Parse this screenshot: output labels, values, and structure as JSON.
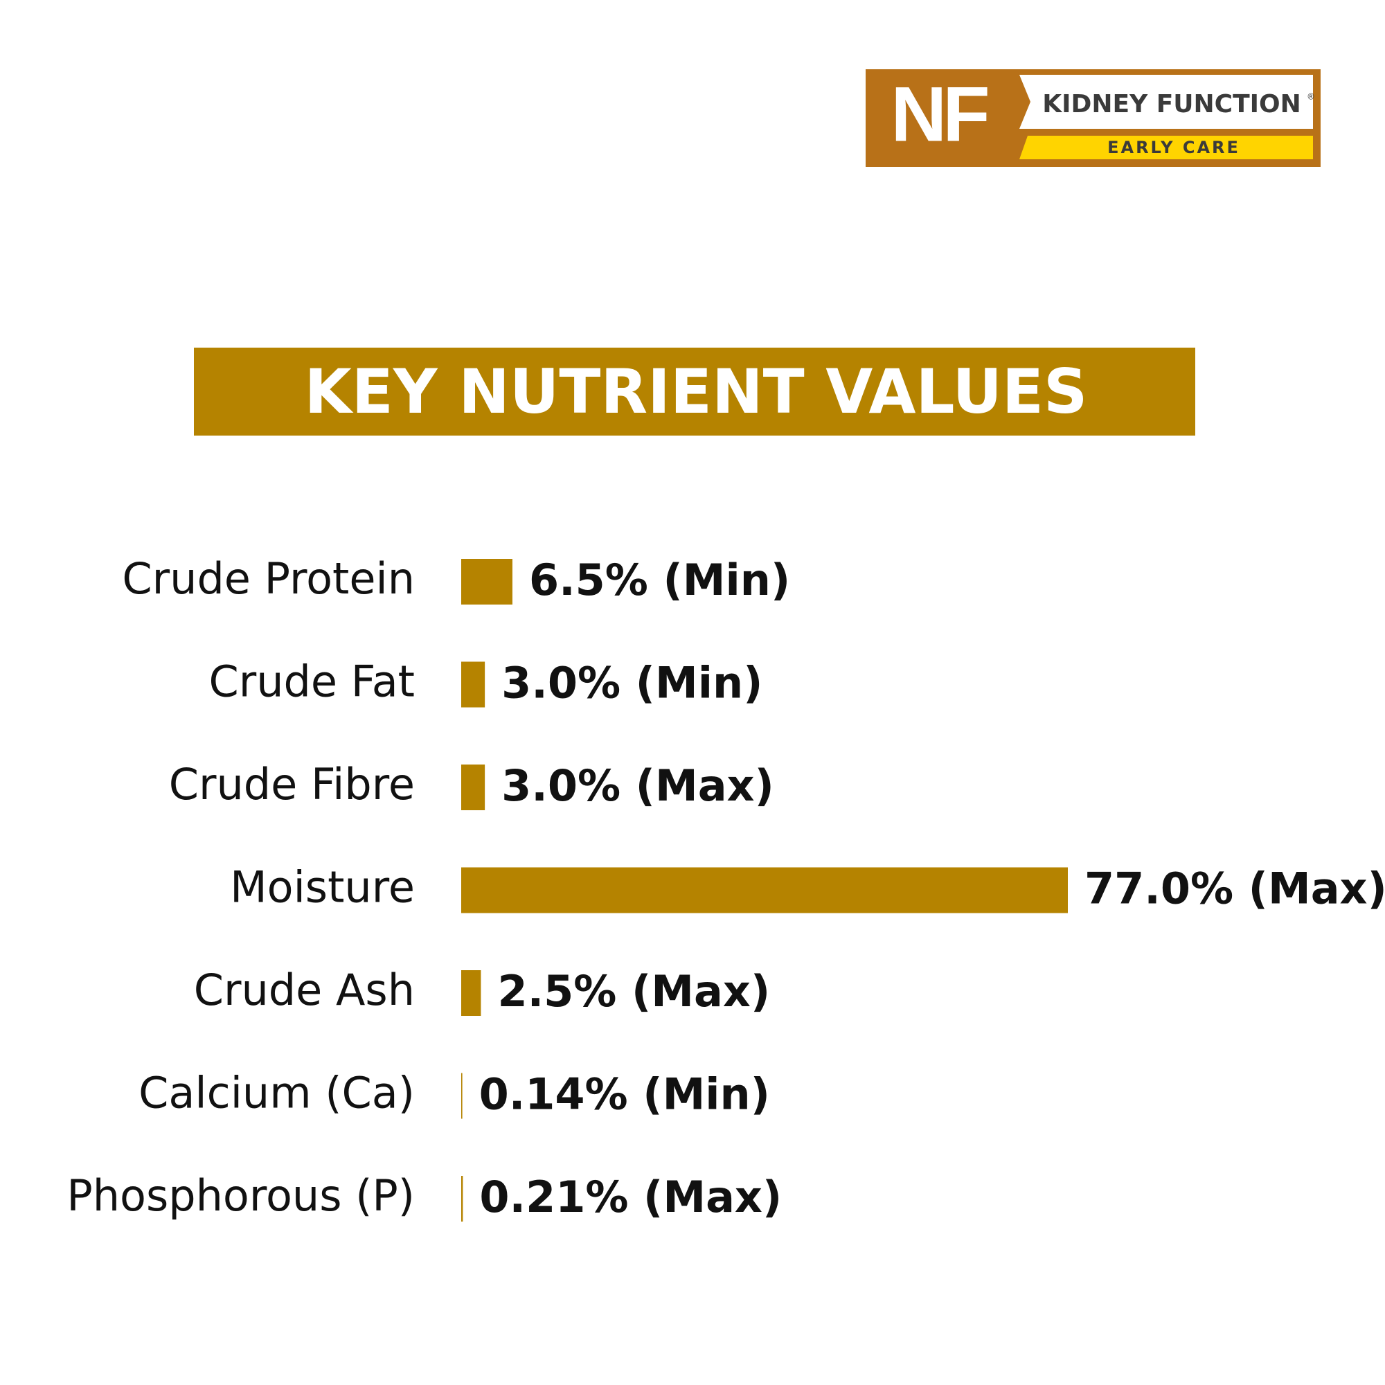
{
  "logo": {
    "mark": "NF",
    "name": "KIDNEY FUNCTION",
    "registered": "®",
    "tagline": "EARLY CARE"
  },
  "chart_data": {
    "type": "bar",
    "orientation": "horizontal",
    "title": "KEY NUTRIENT VALUES",
    "categories": [
      "Crude Protein",
      "Crude Fat",
      "Crude Fibre",
      "Moisture",
      "Crude Ash",
      "Calcium (Ca)",
      "Phosphorous (P)"
    ],
    "values": [
      6.5,
      3.0,
      3.0,
      77.0,
      2.5,
      0.14,
      0.21
    ],
    "value_labels": [
      "6.5% (Min)",
      "3.0% (Min)",
      "3.0% (Max)",
      "77.0% (Max)",
      "2.5% (Max)",
      "0.14% (Min)",
      "0.21% (Max)"
    ],
    "color": "#b58300"
  }
}
